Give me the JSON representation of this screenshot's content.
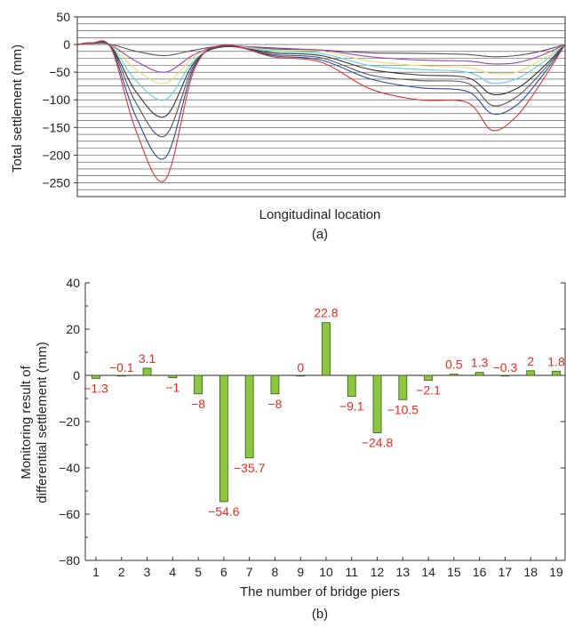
{
  "colors": {
    "bar_fill": "#8dc63f",
    "bar_stroke": "#2e5c10",
    "data_label": "#e8281e",
    "axis": "#333333"
  },
  "chart_data": [
    {
      "type": "line",
      "panel_label": "(a)",
      "xlabel": "Longitudinal location",
      "ylabel": "Total settlement (mm)",
      "ylim": [
        -275,
        50
      ],
      "yticks": [
        50,
        0,
        -50,
        -100,
        -150,
        -200,
        -250
      ],
      "grid": "horizontal",
      "x_range": [
        0,
        100
      ],
      "series": [
        {
          "color": "#555555",
          "x": [
            0,
            3,
            7,
            12,
            18,
            24,
            30,
            40,
            50,
            60,
            70,
            80,
            85,
            90,
            95,
            100
          ],
          "y": [
            0,
            2,
            0,
            -12,
            -20,
            -10,
            -3,
            -6,
            -10,
            -15,
            -16,
            -18,
            -22,
            -20,
            -12,
            0
          ]
        },
        {
          "color": "#a03eb4",
          "x": [
            0,
            3,
            7,
            12,
            18,
            24,
            30,
            40,
            50,
            60,
            70,
            80,
            85,
            90,
            95,
            100
          ],
          "y": [
            0,
            2,
            -2,
            -30,
            -50,
            -18,
            -2,
            -8,
            -10,
            -22,
            -28,
            -30,
            -35,
            -33,
            -20,
            0
          ]
        },
        {
          "color": "#e6e06e",
          "x": [
            0,
            3,
            7,
            12,
            18,
            24,
            30,
            40,
            50,
            60,
            70,
            80,
            85,
            90,
            95,
            100
          ],
          "y": [
            0,
            2,
            -3,
            -45,
            -70,
            -22,
            -3,
            -10,
            -12,
            -30,
            -38,
            -42,
            -52,
            -50,
            -28,
            0
          ]
        },
        {
          "color": "#5ad0e0",
          "x": [
            0,
            3,
            7,
            12,
            18,
            24,
            30,
            40,
            50,
            60,
            70,
            80,
            85,
            90,
            95,
            100
          ],
          "y": [
            0,
            2,
            -4,
            -65,
            -100,
            -28,
            -4,
            -12,
            -16,
            -38,
            -45,
            -50,
            -70,
            -62,
            -35,
            0
          ]
        },
        {
          "color": "#333333",
          "x": [
            0,
            3,
            7,
            12,
            18,
            24,
            30,
            40,
            50,
            60,
            70,
            80,
            85,
            90,
            95,
            100
          ],
          "y": [
            0,
            2,
            -5,
            -85,
            -130,
            -32,
            -4,
            -15,
            -20,
            -45,
            -55,
            -60,
            -90,
            -80,
            -45,
            0
          ]
        },
        {
          "color": "#555555",
          "x": [
            0,
            3,
            7,
            12,
            18,
            24,
            30,
            40,
            50,
            60,
            70,
            80,
            85,
            90,
            95,
            100
          ],
          "y": [
            0,
            2,
            -6,
            -105,
            -165,
            -36,
            -3,
            -18,
            -24,
            -55,
            -65,
            -70,
            -110,
            -95,
            -52,
            0
          ]
        },
        {
          "color": "#2a4a9e",
          "x": [
            0,
            3,
            7,
            12,
            18,
            24,
            30,
            40,
            50,
            60,
            70,
            80,
            85,
            90,
            95,
            100
          ],
          "y": [
            0,
            3,
            -7,
            -130,
            -205,
            -40,
            -2,
            -20,
            -28,
            -62,
            -78,
            -85,
            -125,
            -110,
            -60,
            0
          ]
        },
        {
          "color": "#d9343a",
          "x": [
            0,
            3,
            7,
            12,
            18,
            24,
            30,
            40,
            50,
            60,
            70,
            80,
            85,
            90,
            95,
            100
          ],
          "y": [
            0,
            3,
            -8,
            -155,
            -245,
            -45,
            -1,
            -22,
            -32,
            -80,
            -100,
            -105,
            -155,
            -130,
            -70,
            0
          ]
        }
      ]
    },
    {
      "type": "bar",
      "panel_label": "(b)",
      "xlabel": "The number of bridge piers",
      "ylabel": [
        "Monitoring result of",
        "differential settlement (mm)"
      ],
      "ylim": [
        -80,
        40
      ],
      "yticks": [
        40,
        20,
        0,
        -20,
        -40,
        -60,
        -80
      ],
      "categories": [
        "1",
        "2",
        "3",
        "4",
        "5",
        "6",
        "7",
        "8",
        "9",
        "10",
        "11",
        "12",
        "13",
        "14",
        "15",
        "16",
        "17",
        "18",
        "19"
      ],
      "values": [
        -1.3,
        -0.1,
        3.1,
        -1,
        -8,
        -54.6,
        -35.7,
        -8,
        0,
        22.8,
        -9.1,
        -24.8,
        -10.5,
        -2.1,
        0.5,
        1.3,
        -0.3,
        2,
        1.8
      ],
      "value_labels": [
        "−1.3",
        "−0.1",
        "3.1",
        "−1",
        "−8",
        "−54.6",
        "−35.7",
        "−8",
        "0",
        "22.8",
        "−9.1",
        "−24.8",
        "−10.5",
        "−2.1",
        "0.5",
        "1.3",
        "−0.3",
        "2",
        "1.8"
      ]
    }
  ]
}
